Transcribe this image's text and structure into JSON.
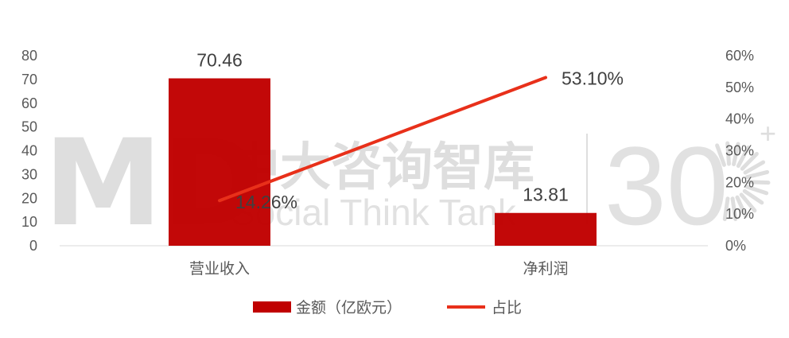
{
  "chart_data": {
    "type": "bar+line",
    "categories": [
      "营业收入",
      "净利润"
    ],
    "series": [
      {
        "name": "金额（亿欧元）",
        "type": "bar",
        "axis": "left",
        "values": [
          70.46,
          13.81
        ],
        "labels": [
          "70.46",
          "13.81"
        ],
        "color": "#c00000"
      },
      {
        "name": "占比",
        "type": "line",
        "axis": "right",
        "values": [
          14.26,
          53.1
        ],
        "labels": [
          "14.26%",
          "53.10%"
        ],
        "color": "#e8301a"
      }
    ],
    "y_left": {
      "range": [
        0,
        80
      ],
      "ticks": [
        "0",
        "10",
        "20",
        "30",
        "40",
        "50",
        "60",
        "70",
        "80"
      ]
    },
    "y_right": {
      "range": [
        0,
        60
      ],
      "ticks": [
        "0%",
        "10%",
        "20%",
        "30%",
        "40%",
        "50%",
        "60%"
      ]
    },
    "grid": false,
    "legend": "bottom"
  },
  "watermark": {
    "logo_text": "MD",
    "cn": "中大咨询智库",
    "en": "Social Think Tank",
    "number": "30",
    "color": "#d9d9d9"
  }
}
